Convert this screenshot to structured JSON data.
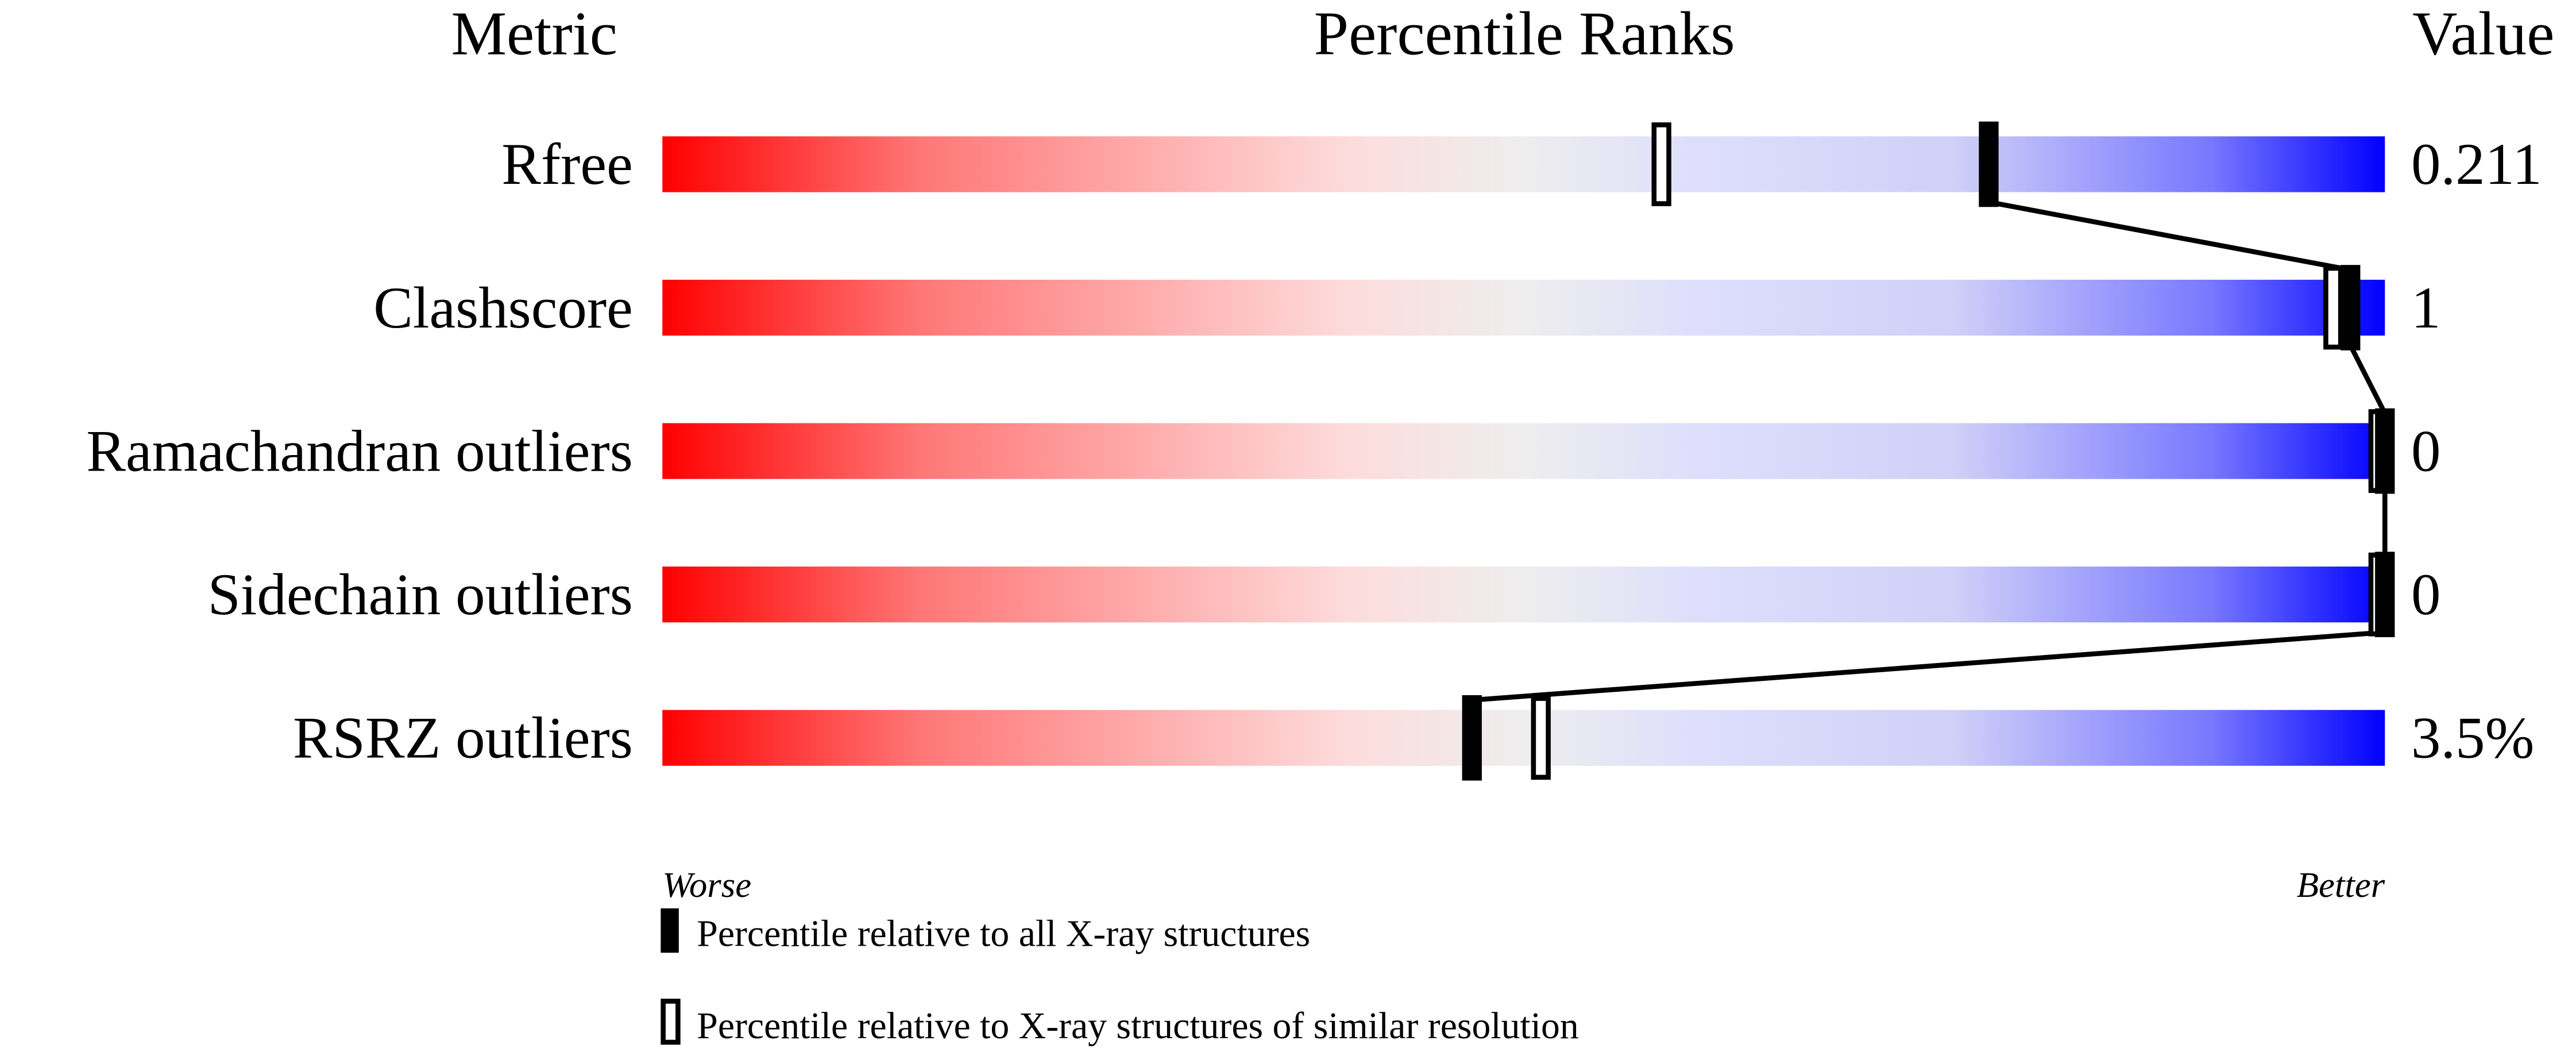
{
  "chart_data": {
    "type": "bar",
    "headers": {
      "metric": "Metric",
      "percentile": "Percentile Ranks",
      "value": "Value"
    },
    "metrics": [
      {
        "name": "Rfree",
        "value": "0.211",
        "percentile_all": 77,
        "percentile_similar": 58
      },
      {
        "name": "Clashscore",
        "value": "1",
        "percentile_all": 98,
        "percentile_similar": 97
      },
      {
        "name": "Ramachandran outliers",
        "value": "0",
        "percentile_all": 100,
        "percentile_similar": 100
      },
      {
        "name": "Sidechain outliers",
        "value": "0",
        "percentile_all": 100,
        "percentile_similar": 100
      },
      {
        "name": "RSRZ outliers",
        "value": "3.5%",
        "percentile_all": 47,
        "percentile_similar": 51
      }
    ],
    "xlim": [
      0,
      100
    ],
    "axis_labels": {
      "left": "Worse",
      "right": "Better"
    },
    "legend": {
      "filled": "Percentile relative to all X-ray structures",
      "open": "Percentile relative to X-ray structures of similar resolution"
    },
    "colors": {
      "worse": "#ff0000",
      "middle": "#eeeeee",
      "better": "#0000ff",
      "marker": "#000000"
    }
  }
}
